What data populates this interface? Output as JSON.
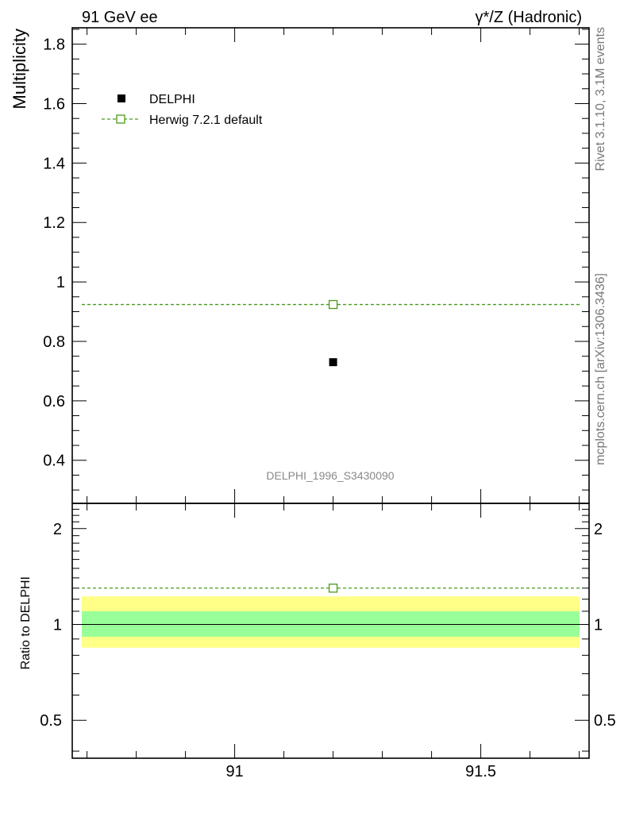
{
  "header": {
    "left": "91 GeV ee",
    "right": "γ*/Z (Hadronic)"
  },
  "side_text": {
    "top": "Rivet 3.1.10,  3.1M events",
    "bottom": "mcplots.cern.ch [arXiv:1306.3436]"
  },
  "analysis_id": "DELPHI_1996_S3430090",
  "chart_data": [
    {
      "type": "scatter",
      "ylabel": "Multiplicity",
      "xlim": [
        90.67,
        91.72
      ],
      "ylim": [
        0.255,
        1.855
      ],
      "yticks": [
        0.4,
        0.6,
        0.8,
        1.0,
        1.2,
        1.4,
        1.6,
        1.8
      ],
      "yticklabels": [
        "0.4",
        "0.6",
        "0.8",
        "1",
        "1.2",
        "1.4",
        "1.6",
        "1.8"
      ],
      "legend_position": "top-left",
      "series": [
        {
          "name": "DELPHI",
          "x": [
            91.2
          ],
          "y": [
            0.73
          ],
          "color": "#000000",
          "marker": "filled-square"
        },
        {
          "name": "Herwig 7.2.1 default",
          "x": [
            91.2
          ],
          "y": [
            0.924
          ],
          "color": "#4a9a1a",
          "marker": "open-square",
          "line": "dashed"
        }
      ]
    },
    {
      "type": "line",
      "ylabel": "Ratio to DELPHI",
      "xlabel": "",
      "xlim": [
        90.67,
        91.72
      ],
      "ylim": [
        0.38,
        2.4
      ],
      "scale": "log",
      "xticks": [
        91,
        91.5
      ],
      "xticklabels": [
        "91",
        "91.5"
      ],
      "yticks": [
        0.5,
        1,
        2
      ],
      "yticklabels": [
        "0.5",
        "1",
        "2"
      ],
      "bands": [
        {
          "name": "total uncertainty",
          "lo": 0.845,
          "hi": 1.225,
          "color": "#ffff88"
        },
        {
          "name": "stat uncertainty",
          "lo": 0.915,
          "hi": 1.1,
          "color": "#99ff99"
        }
      ],
      "series": [
        {
          "name": "DELPHI",
          "x": [
            91.2
          ],
          "y": [
            1.0
          ],
          "color": "#000000"
        },
        {
          "name": "Herwig 7.2.1 default",
          "x": [
            91.2
          ],
          "y": [
            1.3
          ],
          "color": "#4a9a1a",
          "marker": "open-square",
          "line": "dashed"
        }
      ]
    }
  ]
}
